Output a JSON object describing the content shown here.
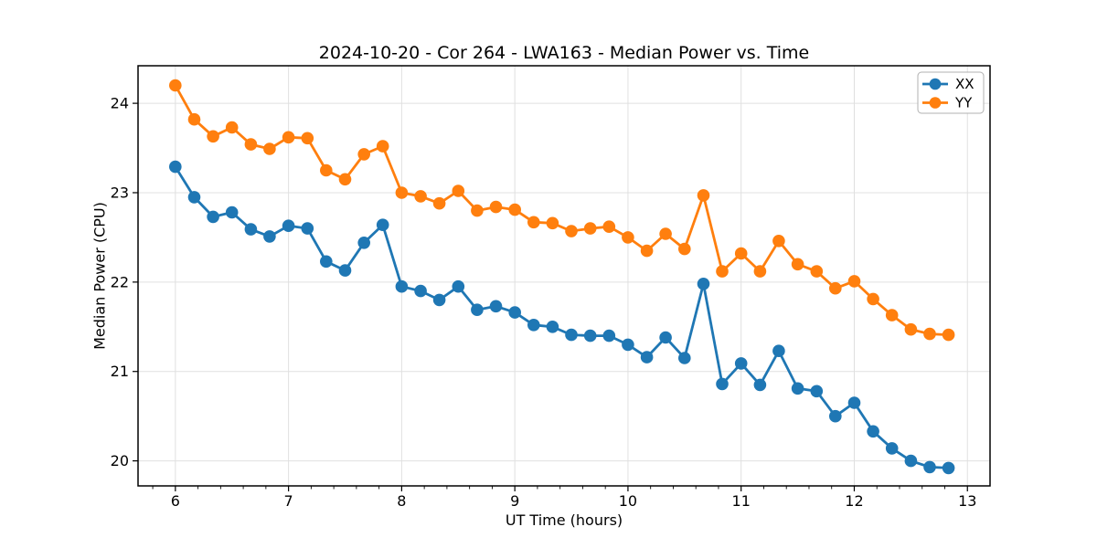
{
  "chart_data": {
    "type": "line",
    "title": "2024-10-20 - Cor 264 - LWA163 - Median Power vs. Time",
    "xlabel": "UT Time (hours)",
    "ylabel": "Median Power (CPU)",
    "xlim": [
      5.67,
      13.2
    ],
    "ylim": [
      19.72,
      24.42
    ],
    "xticks": [
      6,
      7,
      8,
      9,
      10,
      11,
      12,
      13
    ],
    "yticks": [
      20,
      21,
      22,
      23,
      24
    ],
    "x_minor_tick_step": 0.2,
    "grid": true,
    "grid_color": "#e0e0e0",
    "legend_position": "upper right",
    "x": [
      6,
      6.167,
      6.333,
      6.5,
      6.667,
      6.833,
      7,
      7.167,
      7.333,
      7.5,
      7.667,
      7.833,
      8,
      8.167,
      8.333,
      8.5,
      8.667,
      8.833,
      9,
      9.167,
      9.333,
      9.5,
      9.667,
      9.833,
      10,
      10.167,
      10.333,
      10.5,
      10.667,
      10.833,
      11,
      11.167,
      11.333,
      11.5,
      11.667,
      11.833,
      12,
      12.167,
      12.333,
      12.5,
      12.667,
      12.833
    ],
    "series": [
      {
        "name": "XX",
        "color": "#1f77b4",
        "values": [
          23.29,
          22.95,
          22.73,
          22.78,
          22.59,
          22.51,
          22.63,
          22.6,
          22.23,
          22.13,
          22.44,
          22.64,
          21.95,
          21.9,
          21.8,
          21.95,
          21.69,
          21.73,
          21.66,
          21.52,
          21.5,
          21.41,
          21.4,
          21.4,
          21.3,
          21.16,
          21.38,
          21.15,
          21.98,
          20.86,
          21.09,
          20.85,
          21.23,
          20.81,
          20.78,
          20.5,
          20.65,
          20.33,
          20.14,
          20.0,
          19.93,
          19.92
        ]
      },
      {
        "name": "YY",
        "color": "#ff7f0e",
        "values": [
          24.2,
          23.82,
          23.63,
          23.73,
          23.54,
          23.49,
          23.62,
          23.61,
          23.25,
          23.15,
          23.43,
          23.52,
          23.0,
          22.96,
          22.88,
          23.02,
          22.8,
          22.84,
          22.81,
          22.67,
          22.66,
          22.57,
          22.6,
          22.62,
          22.5,
          22.35,
          22.54,
          22.37,
          22.97,
          22.12,
          22.32,
          22.12,
          22.46,
          22.2,
          22.12,
          21.93,
          22.01,
          21.81,
          21.63,
          21.47,
          21.42,
          21.41
        ]
      }
    ]
  }
}
